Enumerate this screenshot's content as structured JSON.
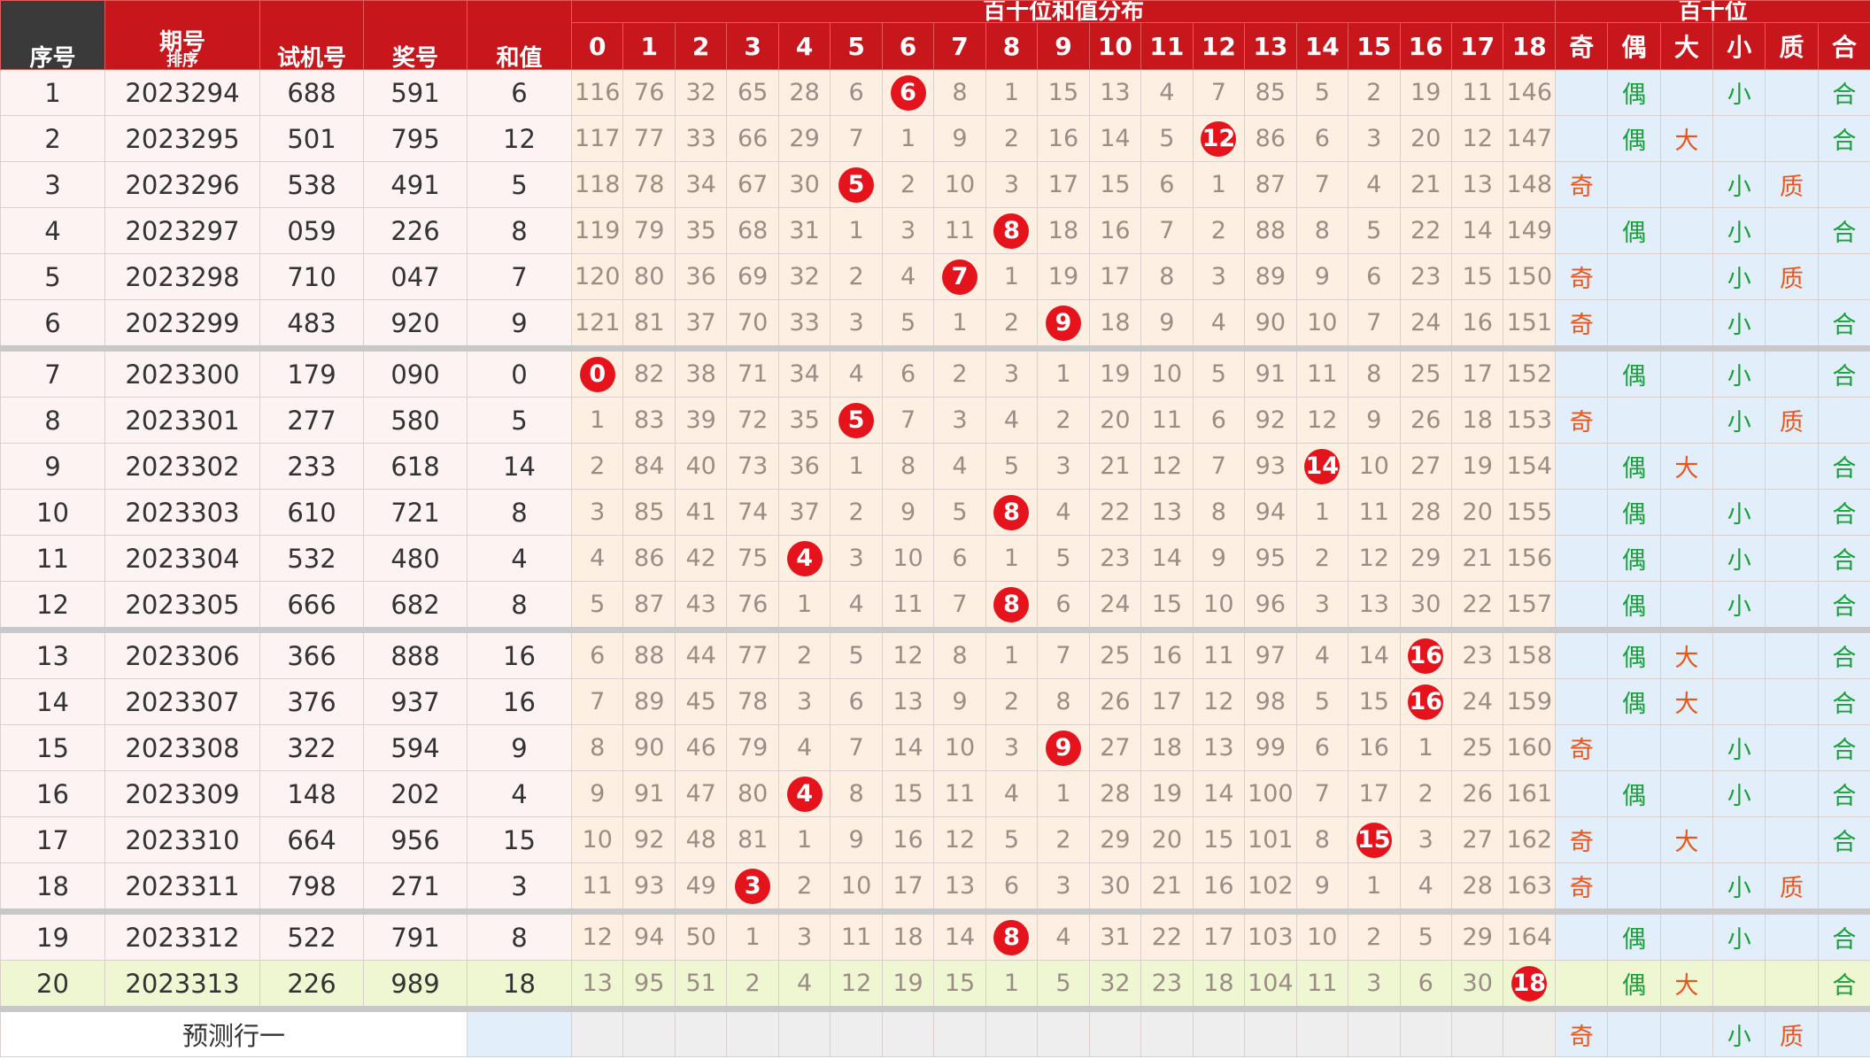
{
  "header": {
    "group_titles": [
      "百十位和值分布",
      "百十位"
    ],
    "columns": [
      "序号",
      "期号",
      "试机号",
      "奖号",
      "和值"
    ],
    "sort_label": "排序",
    "dist_columns": [
      0,
      1,
      2,
      3,
      4,
      5,
      6,
      7,
      8,
      9,
      10,
      11,
      12,
      13,
      14,
      15,
      16,
      17,
      18
    ],
    "attr_columns": [
      "奇",
      "偶",
      "大",
      "小",
      "质",
      "合"
    ]
  },
  "table": {
    "rows": [
      [
        1,
        "2023294",
        "688",
        "591",
        6,
        [
          116,
          76,
          32,
          65,
          28,
          6,
          6,
          8,
          1,
          15,
          13,
          4,
          7,
          85,
          5,
          2,
          19,
          11,
          146
        ],
        [
          null,
          "偶",
          null,
          "小",
          null,
          "合"
        ]
      ],
      [
        2,
        "2023295",
        "501",
        "795",
        12,
        [
          117,
          77,
          33,
          66,
          29,
          7,
          1,
          9,
          2,
          16,
          14,
          5,
          12,
          86,
          6,
          3,
          20,
          12,
          147
        ],
        [
          null,
          "偶",
          "大",
          null,
          null,
          "合"
        ]
      ],
      [
        3,
        "2023296",
        "538",
        "491",
        5,
        [
          118,
          78,
          34,
          67,
          30,
          5,
          2,
          10,
          3,
          17,
          15,
          6,
          1,
          87,
          7,
          4,
          21,
          13,
          148
        ],
        [
          "奇",
          null,
          null,
          "小",
          "质",
          null
        ]
      ],
      [
        4,
        "2023297",
        "059",
        "226",
        8,
        [
          119,
          79,
          35,
          68,
          31,
          1,
          3,
          11,
          8,
          18,
          16,
          7,
          2,
          88,
          8,
          5,
          22,
          14,
          149
        ],
        [
          null,
          "偶",
          null,
          "小",
          null,
          "合"
        ]
      ],
      [
        5,
        "2023298",
        "710",
        "047",
        7,
        [
          120,
          80,
          36,
          69,
          32,
          2,
          4,
          7,
          1,
          19,
          17,
          8,
          3,
          89,
          9,
          6,
          23,
          15,
          150
        ],
        [
          "奇",
          null,
          null,
          "小",
          "质",
          null
        ]
      ],
      [
        6,
        "2023299",
        "483",
        "920",
        9,
        [
          121,
          81,
          37,
          70,
          33,
          3,
          5,
          1,
          2,
          9,
          18,
          9,
          4,
          90,
          10,
          7,
          24,
          16,
          151
        ],
        [
          "奇",
          null,
          null,
          "小",
          null,
          "合"
        ]
      ],
      [
        7,
        "2023300",
        "179",
        "090",
        0,
        [
          0,
          82,
          38,
          71,
          34,
          4,
          6,
          2,
          3,
          1,
          19,
          10,
          5,
          91,
          11,
          8,
          25,
          17,
          152
        ],
        [
          null,
          "偶",
          null,
          "小",
          null,
          "合"
        ]
      ],
      [
        8,
        "2023301",
        "277",
        "580",
        5,
        [
          1,
          83,
          39,
          72,
          35,
          5,
          7,
          3,
          4,
          2,
          20,
          11,
          6,
          92,
          12,
          9,
          26,
          18,
          153
        ],
        [
          "奇",
          null,
          null,
          "小",
          "质",
          null
        ]
      ],
      [
        9,
        "2023302",
        "233",
        "618",
        14,
        [
          2,
          84,
          40,
          73,
          36,
          1,
          8,
          4,
          5,
          3,
          21,
          12,
          7,
          93,
          14,
          10,
          27,
          19,
          154
        ],
        [
          null,
          "偶",
          "大",
          null,
          null,
          "合"
        ]
      ],
      [
        10,
        "2023303",
        "610",
        "721",
        8,
        [
          3,
          85,
          41,
          74,
          37,
          2,
          9,
          5,
          8,
          4,
          22,
          13,
          8,
          94,
          1,
          11,
          28,
          20,
          155
        ],
        [
          null,
          "偶",
          null,
          "小",
          null,
          "合"
        ]
      ],
      [
        11,
        "2023304",
        "532",
        "480",
        4,
        [
          4,
          86,
          42,
          75,
          4,
          3,
          10,
          6,
          1,
          5,
          23,
          14,
          9,
          95,
          2,
          12,
          29,
          21,
          156
        ],
        [
          null,
          "偶",
          null,
          "小",
          null,
          "合"
        ]
      ],
      [
        12,
        "2023305",
        "666",
        "682",
        8,
        [
          5,
          87,
          43,
          76,
          1,
          4,
          11,
          7,
          8,
          6,
          24,
          15,
          10,
          96,
          3,
          13,
          30,
          22,
          157
        ],
        [
          null,
          "偶",
          null,
          "小",
          null,
          "合"
        ]
      ],
      [
        13,
        "2023306",
        "366",
        "888",
        16,
        [
          6,
          88,
          44,
          77,
          2,
          5,
          12,
          8,
          1,
          7,
          25,
          16,
          11,
          97,
          4,
          14,
          16,
          23,
          158
        ],
        [
          null,
          "偶",
          "大",
          null,
          null,
          "合"
        ]
      ],
      [
        14,
        "2023307",
        "376",
        "937",
        16,
        [
          7,
          89,
          45,
          78,
          3,
          6,
          13,
          9,
          2,
          8,
          26,
          17,
          12,
          98,
          5,
          15,
          16,
          24,
          159
        ],
        [
          null,
          "偶",
          "大",
          null,
          null,
          "合"
        ]
      ],
      [
        15,
        "2023308",
        "322",
        "594",
        9,
        [
          8,
          90,
          46,
          79,
          4,
          7,
          14,
          10,
          3,
          9,
          27,
          18,
          13,
          99,
          6,
          16,
          1,
          25,
          160
        ],
        [
          "奇",
          null,
          null,
          "小",
          null,
          "合"
        ]
      ],
      [
        16,
        "2023309",
        "148",
        "202",
        4,
        [
          9,
          91,
          47,
          80,
          4,
          8,
          15,
          11,
          4,
          1,
          28,
          19,
          14,
          100,
          7,
          17,
          2,
          26,
          161
        ],
        [
          null,
          "偶",
          null,
          "小",
          null,
          "合"
        ]
      ],
      [
        17,
        "2023310",
        "664",
        "956",
        15,
        [
          10,
          92,
          48,
          81,
          1,
          9,
          16,
          12,
          5,
          2,
          29,
          20,
          15,
          101,
          8,
          15,
          3,
          27,
          162
        ],
        [
          "奇",
          null,
          "大",
          null,
          null,
          "合"
        ]
      ],
      [
        18,
        "2023311",
        "798",
        "271",
        3,
        [
          11,
          93,
          49,
          3,
          2,
          10,
          17,
          13,
          6,
          3,
          30,
          21,
          16,
          102,
          9,
          1,
          4,
          28,
          163
        ],
        [
          "奇",
          null,
          null,
          "小",
          "质",
          null
        ]
      ],
      [
        19,
        "2023312",
        "522",
        "791",
        8,
        [
          12,
          94,
          50,
          1,
          3,
          11,
          18,
          14,
          8,
          4,
          31,
          22,
          17,
          103,
          10,
          2,
          5,
          29,
          164
        ],
        [
          null,
          "偶",
          null,
          "小",
          null,
          "合"
        ]
      ],
      [
        20,
        "2023313",
        "226",
        "989",
        18,
        [
          13,
          95,
          51,
          2,
          4,
          12,
          19,
          15,
          1,
          5,
          32,
          23,
          18,
          104,
          11,
          3,
          6,
          30,
          18
        ],
        [
          null,
          "偶",
          "大",
          null,
          null,
          "合"
        ]
      ]
    ],
    "prediction": {
      "label": "预测行一",
      "attrs": [
        "奇",
        null,
        null,
        "小",
        "质",
        null
      ]
    }
  }
}
